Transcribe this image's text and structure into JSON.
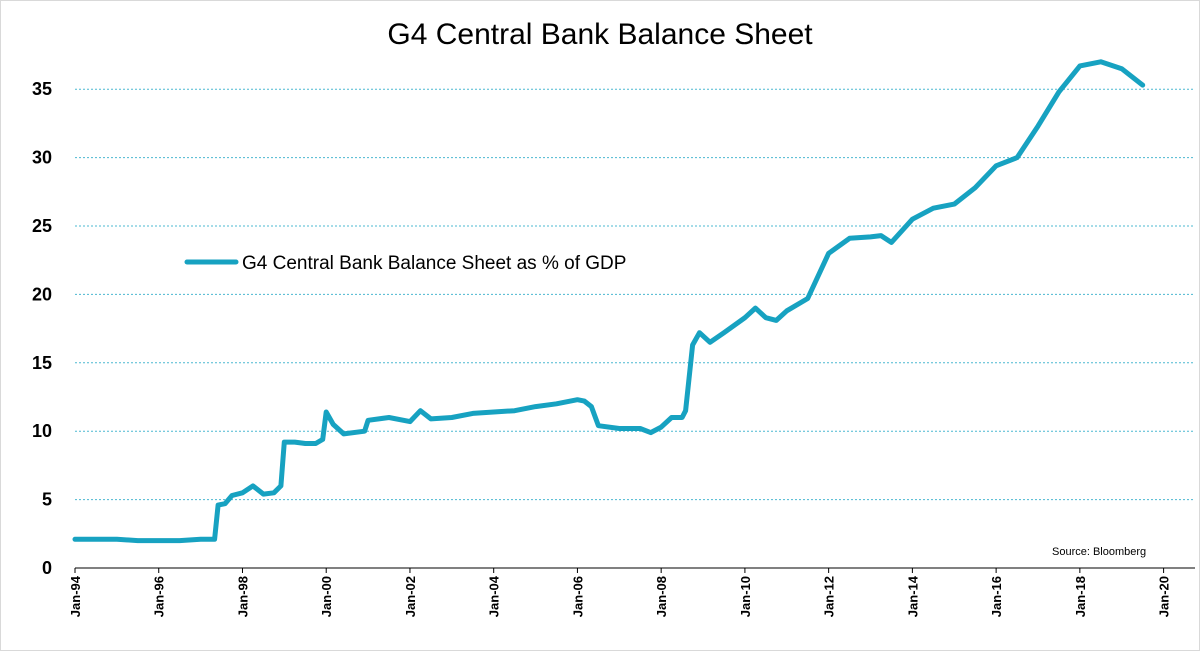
{
  "chart_data": {
    "type": "line",
    "title": "G4 Central Bank Balance Sheet",
    "source": "Source: Bloomberg",
    "legend": {
      "position": "center-left"
    },
    "grid": {
      "y": true,
      "x": false
    },
    "ylim": [
      0,
      37.5
    ],
    "y_ticks": [
      0,
      5,
      10,
      15,
      20,
      25,
      30,
      35
    ],
    "x_range": [
      "Jan-94",
      "Oct-20"
    ],
    "x_ticks": [
      "Jan-94",
      "Jan-96",
      "Jan-98",
      "Jan-00",
      "Jan-02",
      "Jan-04",
      "Jan-06",
      "Jan-08",
      "Jan-10",
      "Jan-12",
      "Jan-14",
      "Jan-16",
      "Jan-18",
      "Jan-20"
    ],
    "colors": {
      "series": "#17a2c1",
      "grid": "#4bb8d1",
      "axis": "#000000"
    },
    "series": [
      {
        "name": "G4 Central Bank Balance Sheet as % of GDP",
        "x": [
          "Jan-94",
          "Jul-94",
          "Jan-95",
          "Jul-95",
          "Jan-96",
          "Jul-96",
          "Jan-97",
          "May-97",
          "Jun-97",
          "Aug-97",
          "Oct-97",
          "Jan-98",
          "Apr-98",
          "Jul-98",
          "Oct-98",
          "Dec-98",
          "Jan-99",
          "Apr-99",
          "Jul-99",
          "Oct-99",
          "Dec-99",
          "Jan-00",
          "Mar-00",
          "Jun-00",
          "Dec-00",
          "Jan-01",
          "Jul-01",
          "Jan-02",
          "Apr-02",
          "Jul-02",
          "Jan-03",
          "Jul-03",
          "Jan-04",
          "Jul-04",
          "Jan-05",
          "Jul-05",
          "Jan-06",
          "Mar-06",
          "May-06",
          "Jul-06",
          "Jan-07",
          "Jul-07",
          "Oct-07",
          "Jan-08",
          "Apr-08",
          "Jul-08",
          "Aug-08",
          "Oct-08",
          "Dec-08",
          "Mar-09",
          "Jul-09",
          "Jan-10",
          "Apr-10",
          "Jul-10",
          "Oct-10",
          "Jan-11",
          "Jul-11",
          "Jan-12",
          "Jul-12",
          "Jan-13",
          "Apr-13",
          "Jul-13",
          "Jan-14",
          "Jul-14",
          "Jan-15",
          "Jul-15",
          "Jan-16",
          "Jul-16",
          "Jan-17",
          "Jul-17",
          "Jan-18",
          "Jul-18",
          "Jan-19",
          "Jul-19"
        ],
        "values": [
          2.1,
          2.1,
          2.1,
          2.0,
          2.0,
          2.0,
          2.1,
          2.1,
          4.6,
          4.7,
          5.3,
          5.5,
          6.0,
          5.4,
          5.5,
          6.0,
          9.2,
          9.2,
          9.1,
          9.1,
          9.4,
          11.4,
          10.5,
          9.8,
          10.0,
          10.8,
          11.0,
          10.7,
          11.5,
          10.9,
          11.0,
          11.3,
          11.4,
          11.5,
          11.8,
          12.0,
          12.3,
          12.2,
          11.8,
          10.4,
          10.2,
          10.2,
          9.9,
          10.3,
          11.0,
          11.0,
          11.5,
          16.3,
          17.2,
          16.5,
          17.2,
          18.3,
          19.0,
          18.3,
          18.1,
          18.8,
          19.7,
          23.0,
          24.1,
          24.2,
          24.3,
          23.8,
          25.5,
          26.3,
          26.6,
          27.8,
          29.4,
          30.0,
          32.3,
          34.8,
          36.7,
          37.0,
          36.5,
          35.3
        ]
      }
    ]
  }
}
